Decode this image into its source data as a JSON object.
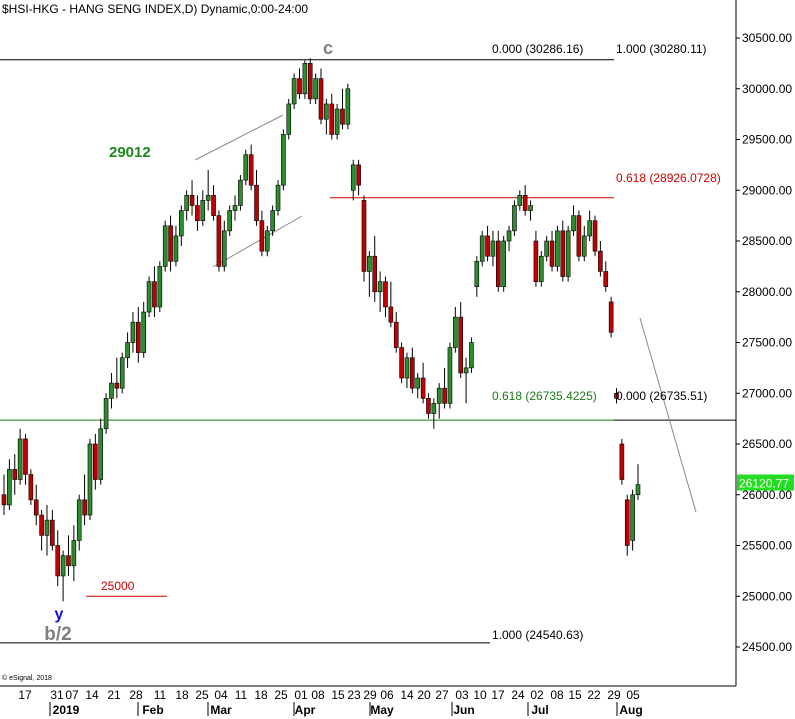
{
  "chart_data": {
    "type": "candlestick",
    "title": "$HSI-HKG - HANG SENG INDEX,D) Dynamic,0:00-24:00",
    "copyright": "© eSignal, 2018",
    "last_price": "26120.77",
    "y_axis": {
      "ticks": [
        "30500.00",
        "30000.00",
        "29500.00",
        "29000.00",
        "28500.00",
        "28000.00",
        "27500.00",
        "27000.00",
        "26500.00",
        "26000.00",
        "25500.00",
        "25000.00",
        "24500.00"
      ],
      "ylim": [
        24300,
        30700
      ]
    },
    "x_axis": {
      "day_ticks": [
        "17",
        "31",
        "07",
        "14",
        "21",
        "28",
        "11",
        "18",
        "25",
        "04",
        "11",
        "18",
        "25",
        "01",
        "08",
        "15",
        "23",
        "29",
        "06",
        "14",
        "20",
        "27",
        "03",
        "10",
        "17",
        "24",
        "02",
        "08",
        "15",
        "22",
        "29",
        "05"
      ],
      "month_labels": [
        "2019",
        "Feb",
        "Mar",
        "Apr",
        "May",
        "Jun",
        "Jul",
        "Aug"
      ]
    },
    "levels": [
      {
        "value": 30286.16,
        "color": "#000000"
      },
      {
        "value": 28926.0728,
        "color": "#d00000"
      },
      {
        "value": 26735.4225,
        "color": "#1a7a1a"
      },
      {
        "value": 24540.63,
        "color": "#000000"
      },
      {
        "value": 25000,
        "color": "#d00000"
      }
    ],
    "annotations": {
      "top_left": "0.000 (30286.16)",
      "top_right": "1.000 (30280.11)",
      "fib_red": "0.618 (28926.0728)",
      "fib_green": "0.618 (26735.4225)",
      "mid_right": "0.000 (26735.51)",
      "bottom": "1.000 (24540.63)",
      "label_29012": "29012",
      "label_25000": "25000",
      "wave_c": "c",
      "wave_y": "y",
      "wave_b2": "b/2"
    },
    "candles": [
      [
        26000,
        26200,
        25800,
        25900
      ],
      [
        25900,
        26350,
        25850,
        26250
      ],
      [
        26250,
        26400,
        26000,
        26150
      ],
      [
        26150,
        26650,
        26100,
        26550
      ],
      [
        26550,
        26600,
        26100,
        26200
      ],
      [
        26200,
        26250,
        25900,
        25950
      ],
      [
        25950,
        26100,
        25700,
        25800
      ],
      [
        25800,
        25850,
        25450,
        25600
      ],
      [
        25600,
        25900,
        25400,
        25750
      ],
      [
        25750,
        25850,
        25450,
        25500
      ],
      [
        25500,
        25650,
        25100,
        25200
      ],
      [
        25200,
        25450,
        24950,
        25400
      ],
      [
        25400,
        25600,
        25200,
        25300
      ],
      [
        25300,
        25700,
        25150,
        25550
      ],
      [
        25550,
        26000,
        25450,
        25950
      ],
      [
        25950,
        26200,
        25700,
        25800
      ],
      [
        25800,
        26550,
        25750,
        26500
      ],
      [
        26500,
        26600,
        26050,
        26150
      ],
      [
        26150,
        26750,
        26100,
        26650
      ],
      [
        26650,
        27000,
        26600,
        26950
      ],
      [
        26950,
        27200,
        26850,
        27100
      ],
      [
        27100,
        27350,
        26950,
        27050
      ],
      [
        27050,
        27400,
        27000,
        27350
      ],
      [
        27350,
        27600,
        27250,
        27500
      ],
      [
        27500,
        27800,
        27400,
        27700
      ],
      [
        27700,
        27850,
        27300,
        27400
      ],
      [
        27400,
        27900,
        27350,
        27800
      ],
      [
        27800,
        28150,
        27750,
        28100
      ],
      [
        28100,
        28250,
        27750,
        27850
      ],
      [
        27850,
        28300,
        27800,
        28250
      ],
      [
        28250,
        28700,
        28200,
        28650
      ],
      [
        28650,
        28750,
        28200,
        28300
      ],
      [
        28300,
        28650,
        28250,
        28550
      ],
      [
        28550,
        28850,
        28450,
        28800
      ],
      [
        28800,
        29000,
        28700,
        28950
      ],
      [
        28950,
        29100,
        28750,
        28850
      ],
      [
        28850,
        28950,
        28600,
        28700
      ],
      [
        28700,
        29000,
        28650,
        28900
      ],
      [
        28900,
        29200,
        28800,
        28950
      ],
      [
        28950,
        29050,
        28700,
        28750
      ],
      [
        28750,
        28800,
        28200,
        28250
      ],
      [
        28250,
        28700,
        28200,
        28600
      ],
      [
        28600,
        28850,
        28550,
        28800
      ],
      [
        28800,
        28950,
        28700,
        28850
      ],
      [
        28850,
        29150,
        28800,
        29100
      ],
      [
        29100,
        29400,
        29050,
        29350
      ],
      [
        29350,
        29450,
        29000,
        29050
      ],
      [
        29050,
        29200,
        28650,
        28700
      ],
      [
        28700,
        28800,
        28350,
        28400
      ],
      [
        28400,
        28650,
        28350,
        28600
      ],
      [
        28600,
        28850,
        28550,
        28800
      ],
      [
        28800,
        29100,
        28750,
        29050
      ],
      [
        29050,
        29600,
        29000,
        29550
      ],
      [
        29550,
        29900,
        29500,
        29850
      ],
      [
        29850,
        30150,
        29800,
        30100
      ],
      [
        30100,
        30200,
        29900,
        29950
      ],
      [
        29950,
        30280,
        29900,
        30250
      ],
      [
        30250,
        30300,
        29850,
        29900
      ],
      [
        29900,
        30150,
        29850,
        30100
      ],
      [
        30100,
        30200,
        29650,
        29700
      ],
      [
        29700,
        29900,
        29550,
        29850
      ],
      [
        29850,
        29950,
        29500,
        29550
      ],
      [
        29550,
        29850,
        29500,
        29800
      ],
      [
        29800,
        30000,
        29600,
        29650
      ],
      [
        29650,
        30050,
        29600,
        30000
      ],
      [
        29000,
        29300,
        28900,
        29250
      ],
      [
        29250,
        29300,
        28950,
        29050
      ],
      [
        28900,
        28950,
        28100,
        28200
      ],
      [
        28200,
        28400,
        27950,
        28350
      ],
      [
        28350,
        28550,
        27900,
        28000
      ],
      [
        28000,
        28200,
        27800,
        28100
      ],
      [
        28100,
        28150,
        27750,
        27850
      ],
      [
        27850,
        28100,
        27650,
        27700
      ],
      [
        27700,
        27800,
        27400,
        27450
      ],
      [
        27450,
        27500,
        27100,
        27150
      ],
      [
        27150,
        27400,
        27050,
        27350
      ],
      [
        27350,
        27450,
        27000,
        27050
      ],
      [
        27050,
        27200,
        26950,
        27150
      ],
      [
        27150,
        27300,
        26900,
        26950
      ],
      [
        26950,
        27000,
        26750,
        26800
      ],
      [
        26800,
        26950,
        26650,
        26900
      ],
      [
        26900,
        27100,
        26750,
        27050
      ],
      [
        27050,
        27250,
        26850,
        26900
      ],
      [
        26900,
        27500,
        26850,
        27450
      ],
      [
        27450,
        27850,
        27400,
        27750
      ],
      [
        27750,
        27900,
        27150,
        27200
      ],
      [
        27200,
        27350,
        26900,
        27250
      ],
      [
        27250,
        27550,
        27200,
        27500
      ],
      [
        28050,
        28350,
        27950,
        28300
      ],
      [
        28300,
        28600,
        28250,
        28550
      ],
      [
        28550,
        28650,
        28300,
        28350
      ],
      [
        28350,
        28600,
        28250,
        28500
      ],
      [
        28500,
        28600,
        28000,
        28050
      ],
      [
        28050,
        28550,
        28000,
        28500
      ],
      [
        28500,
        28650,
        28400,
        28600
      ],
      [
        28600,
        28900,
        28550,
        28850
      ],
      [
        28850,
        29000,
        28800,
        28950
      ],
      [
        28950,
        29050,
        28750,
        28800
      ],
      [
        28800,
        28900,
        28700,
        28850
      ],
      [
        28500,
        28600,
        28050,
        28100
      ],
      [
        28100,
        28400,
        28050,
        28350
      ],
      [
        28350,
        28550,
        28300,
        28500
      ],
      [
        28500,
        28600,
        28200,
        28250
      ],
      [
        28250,
        28650,
        28200,
        28600
      ],
      [
        28600,
        28700,
        28100,
        28150
      ],
      [
        28150,
        28650,
        28100,
        28600
      ],
      [
        28600,
        28850,
        28550,
        28750
      ],
      [
        28750,
        28800,
        28300,
        28350
      ],
      [
        28350,
        28650,
        28300,
        28550
      ],
      [
        28550,
        28800,
        28500,
        28700
      ],
      [
        28700,
        28750,
        28350,
        28400
      ],
      [
        28400,
        28500,
        28150,
        28200
      ],
      [
        28200,
        28300,
        28000,
        28050
      ],
      [
        27900,
        27950,
        27550,
        27600
      ],
      [
        27000,
        27050,
        26900,
        26950
      ],
      [
        26500,
        26550,
        26100,
        26150
      ],
      [
        25950,
        26000,
        25400,
        25500
      ],
      [
        25550,
        26050,
        25450,
        26000
      ],
      [
        26000,
        26300,
        25950,
        26100
      ]
    ]
  }
}
